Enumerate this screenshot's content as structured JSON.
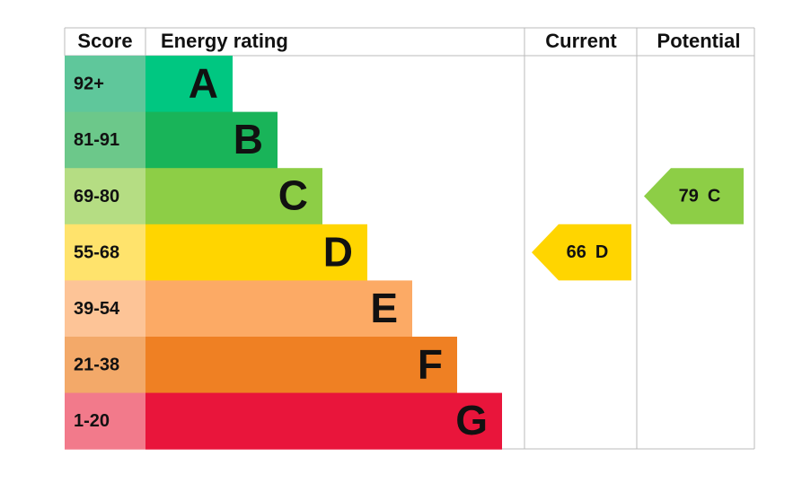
{
  "headers": {
    "score": "Score",
    "rating": "Energy rating",
    "current": "Current",
    "potential": "Potential"
  },
  "bands": [
    {
      "score": "92+",
      "letter": "A",
      "color": "#00c781",
      "score_color": "#5fc79b"
    },
    {
      "score": "81-91",
      "letter": "B",
      "color": "#19b459",
      "score_color": "#6cc88a"
    },
    {
      "score": "69-80",
      "letter": "C",
      "color": "#8dce46",
      "score_color": "#b5dd83"
    },
    {
      "score": "55-68",
      "letter": "D",
      "color": "#ffd500",
      "score_color": "#ffe36c"
    },
    {
      "score": "39-54",
      "letter": "E",
      "color": "#fcaa65",
      "score_color": "#fdc497"
    },
    {
      "score": "21-38",
      "letter": "F",
      "color": "#ef8023",
      "score_color": "#f3a969"
    },
    {
      "score": "1-20",
      "letter": "G",
      "color": "#e9153b",
      "score_color": "#f27a8b"
    }
  ],
  "current": {
    "value": 66,
    "letter": "D"
  },
  "potential": {
    "value": 79,
    "letter": "C"
  }
}
